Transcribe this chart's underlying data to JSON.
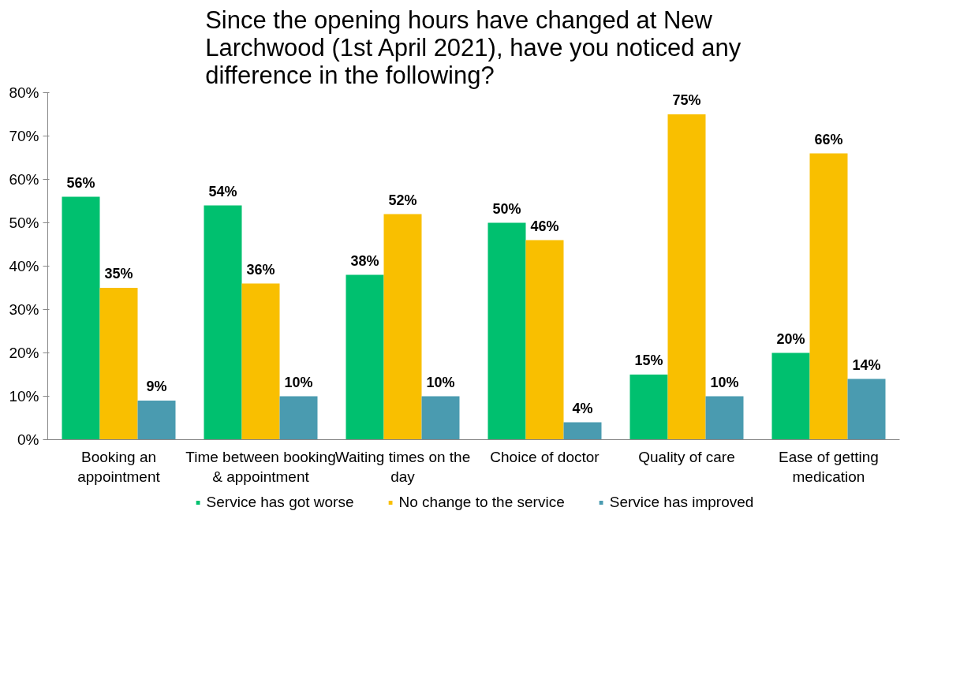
{
  "chart_data": {
    "type": "bar",
    "title": "Since the opening hours have changed at New Larchwood (1st April 2021), have you noticed any difference in the following?",
    "categories": [
      "Booking an appointment",
      "Time between booking & appointment",
      "Waiting times on the day",
      "Choice of doctor",
      "Quality of care",
      "Ease of getting medication"
    ],
    "series": [
      {
        "name": "Service has got worse",
        "color": "#00c06f",
        "values": [
          56,
          54,
          38,
          50,
          15,
          20
        ],
        "value_labels": [
          "56%",
          "54%",
          "38%",
          "50%",
          "15%",
          "20%"
        ]
      },
      {
        "name": "No change to the service",
        "color": "#f9bf00",
        "values": [
          35,
          36,
          52,
          46,
          75,
          66
        ],
        "value_labels": [
          "35%",
          "36%",
          "52%",
          "46%",
          "75%",
          "66%"
        ]
      },
      {
        "name": "Service has improved",
        "color": "#4a9bb0",
        "values": [
          9,
          10,
          10,
          4,
          10,
          14
        ],
        "value_labels": [
          "9%",
          "10%",
          "10%",
          "4%",
          "10%",
          "14%"
        ]
      }
    ],
    "ylim": [
      0,
      80
    ],
    "yticks": [
      {
        "value": 0,
        "label": "0%"
      },
      {
        "value": 10,
        "label": "10%"
      },
      {
        "value": 20,
        "label": "20%"
      },
      {
        "value": 30,
        "label": "30%"
      },
      {
        "value": 40,
        "label": "40%"
      },
      {
        "value": 50,
        "label": "50%"
      },
      {
        "value": 60,
        "label": "60%"
      },
      {
        "value": 70,
        "label": "70%"
      },
      {
        "value": 80,
        "label": "80%"
      }
    ],
    "legend": "bottom"
  }
}
